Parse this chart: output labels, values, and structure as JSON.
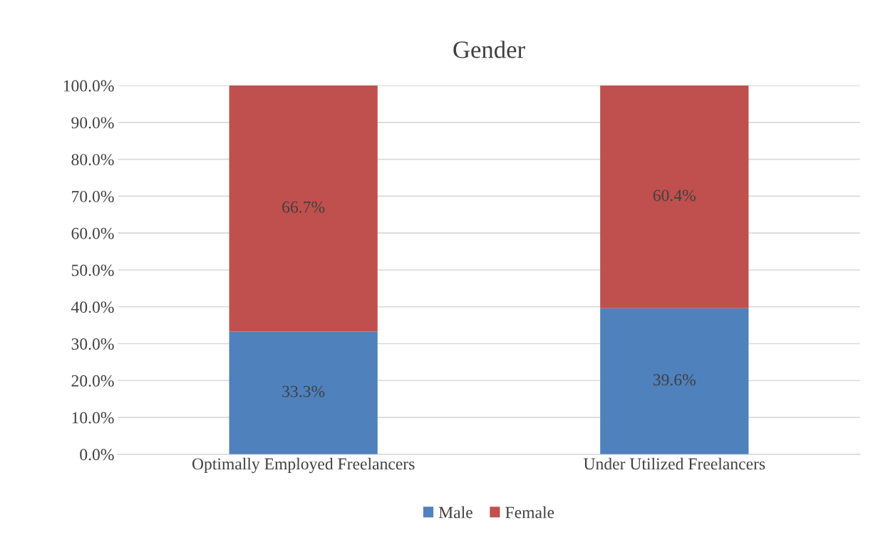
{
  "chart_data": {
    "type": "bar",
    "title": "Gender",
    "stacked": true,
    "categories": [
      "Optimally Employed Freelancers",
      "Under Utilized Freelancers"
    ],
    "series": [
      {
        "name": "Male",
        "color": "#4f81bd",
        "values": [
          33.3,
          39.6
        ],
        "value_labels": [
          "33.3%",
          "39.6%"
        ]
      },
      {
        "name": "Female",
        "color": "#c0504d",
        "values": [
          66.7,
          60.4
        ],
        "value_labels": [
          "66.7%",
          "60.4%"
        ]
      }
    ],
    "ylim": [
      0,
      100
    ],
    "yticks": [
      {
        "value": 0,
        "label": "0.0%"
      },
      {
        "value": 10,
        "label": "10.0%"
      },
      {
        "value": 20,
        "label": "20.0%"
      },
      {
        "value": 30,
        "label": "30.0%"
      },
      {
        "value": 40,
        "label": "40.0%"
      },
      {
        "value": 50,
        "label": "50.0%"
      },
      {
        "value": 60,
        "label": "60.0%"
      },
      {
        "value": 70,
        "label": "70.0%"
      },
      {
        "value": 80,
        "label": "80.0%"
      },
      {
        "value": 90,
        "label": "90.0%"
      },
      {
        "value": 100,
        "label": "100.0%"
      }
    ],
    "grid": "y",
    "legend": "bottom"
  }
}
